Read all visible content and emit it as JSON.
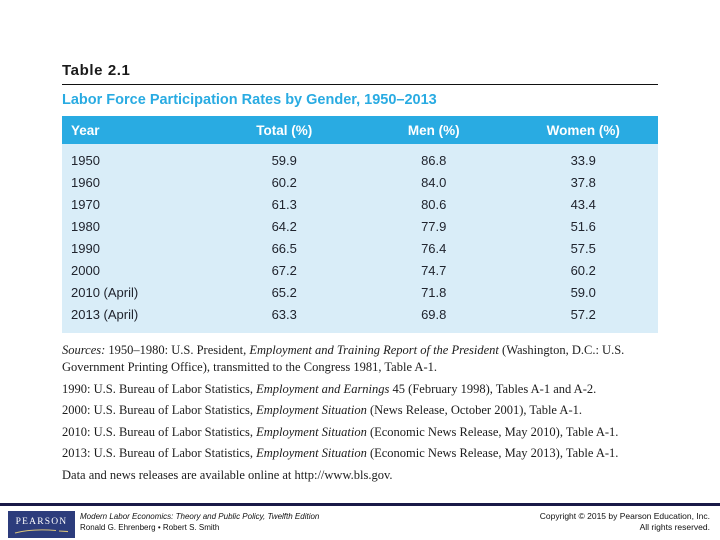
{
  "table": {
    "label": "Table 2.1",
    "title": "Labor Force Participation Rates by Gender, 1950–2013",
    "columns": [
      "Year",
      "Total (%)",
      "Men (%)",
      "Women (%)"
    ],
    "rows": [
      [
        "1950",
        "59.9",
        "86.8",
        "33.9"
      ],
      [
        "1960",
        "60.2",
        "84.0",
        "37.8"
      ],
      [
        "1970",
        "61.3",
        "80.6",
        "43.4"
      ],
      [
        "1980",
        "64.2",
        "77.9",
        "51.6"
      ],
      [
        "1990",
        "66.5",
        "76.4",
        "57.5"
      ],
      [
        "2000",
        "67.2",
        "74.7",
        "60.2"
      ],
      [
        "2010 (April)",
        "65.2",
        "71.8",
        "59.0"
      ],
      [
        "2013 (April)",
        "63.3",
        "69.8",
        "57.2"
      ]
    ]
  },
  "sources": [
    [
      {
        "t": "Sources: ",
        "i": true
      },
      {
        "t": "1950–1980: U.S. President, ",
        "i": false
      },
      {
        "t": "Employment and Training Report of the President",
        "i": true
      },
      {
        "t": " (Washington, D.C.: U.S. Government Printing Office), transmitted to the Congress 1981, Table A-1.",
        "i": false
      }
    ],
    [
      {
        "t": "1990: U.S. Bureau of Labor Statistics, ",
        "i": false
      },
      {
        "t": "Employment and Earnings",
        "i": true
      },
      {
        "t": " 45 (February 1998), Tables A-1 and A-2.",
        "i": false
      }
    ],
    [
      {
        "t": "2000: U.S. Bureau of Labor Statistics, ",
        "i": false
      },
      {
        "t": "Employment Situation",
        "i": true
      },
      {
        "t": " (News Release, October 2001), Table A-1.",
        "i": false
      }
    ],
    [
      {
        "t": "2010: U.S. Bureau of Labor Statistics, ",
        "i": false
      },
      {
        "t": "Employment Situation",
        "i": true
      },
      {
        "t": " (Economic News Release, May 2010), Table A-1.",
        "i": false
      }
    ],
    [
      {
        "t": "2013: U.S. Bureau of Labor Statistics, ",
        "i": false
      },
      {
        "t": "Employment Situation",
        "i": true
      },
      {
        "t": " (Economic News Release, May 2013), Table A-1.",
        "i": false
      }
    ],
    [
      {
        "t": "Data and news releases are available online at http://www.bls.gov.",
        "i": false
      }
    ]
  ],
  "footer": {
    "logo": "PEARSON",
    "book_title": "Modern Labor Economics: Theory and Public Policy, Twelfth Edition",
    "authors": "Ronald G. Ehrenberg • Robert S. Smith",
    "copyright_line1": "Copyright © 2015 by Pearson Education, Inc.",
    "copyright_line2": "All rights reserved."
  },
  "colors": {
    "accent_cyan": "#29abe2",
    "body_light_blue": "#d9edf8",
    "footer_navy": "#191947",
    "logo_navy": "#2c3c7c"
  }
}
